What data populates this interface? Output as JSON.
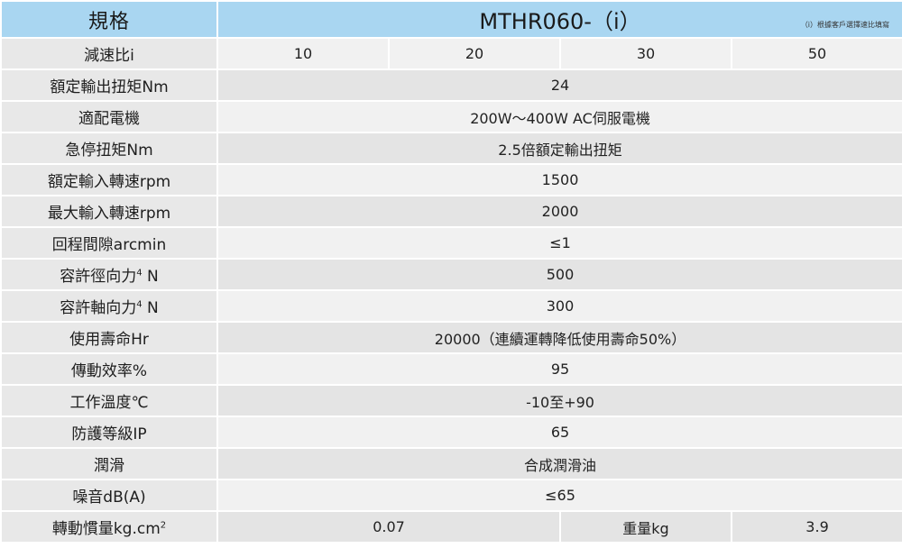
{
  "header": {
    "spec_label": "規格",
    "model": "MTHR060-（i）",
    "model_note": "（i）根據客戶選擇速比填寫"
  },
  "ratio_row": {
    "label": "減速比i",
    "values": [
      "10",
      "20",
      "30",
      "50"
    ]
  },
  "rows": [
    {
      "label": "額定輸出扭矩Nm",
      "value": "24"
    },
    {
      "label": "適配電機",
      "value": "200W～400W AC伺服電機"
    },
    {
      "label": "急停扭矩Nm",
      "value": "2.5倍額定輸出扭矩"
    },
    {
      "label": "額定輸入轉速rpm",
      "value": "1500"
    },
    {
      "label": "最大輸入轉速rpm",
      "value": "2000"
    },
    {
      "label": "回程間隙arcmin",
      "value": "≤1"
    },
    {
      "label": "容許徑向力",
      "label_sup": "4",
      "label_suffix": " N",
      "value": "500"
    },
    {
      "label": "容許軸向力",
      "label_sup": "4",
      "label_suffix": " N",
      "value": "300"
    },
    {
      "label": "使用壽命Hr",
      "value": "20000（連續運轉降低使用壽命50%）"
    },
    {
      "label": "傳動效率%",
      "value": "95"
    },
    {
      "label": "工作溫度℃",
      "value": "-10至+90"
    },
    {
      "label": "防護等級IP",
      "value": "65"
    },
    {
      "label": "潤滑",
      "value": "合成潤滑油"
    },
    {
      "label": "噪音dB(A)",
      "value": "≤65"
    }
  ],
  "inertia_row": {
    "label": "轉動慣量kg.cm",
    "label_sup": "2",
    "value": "0.07",
    "weight_label": "重量kg",
    "weight_value": "3.9"
  }
}
